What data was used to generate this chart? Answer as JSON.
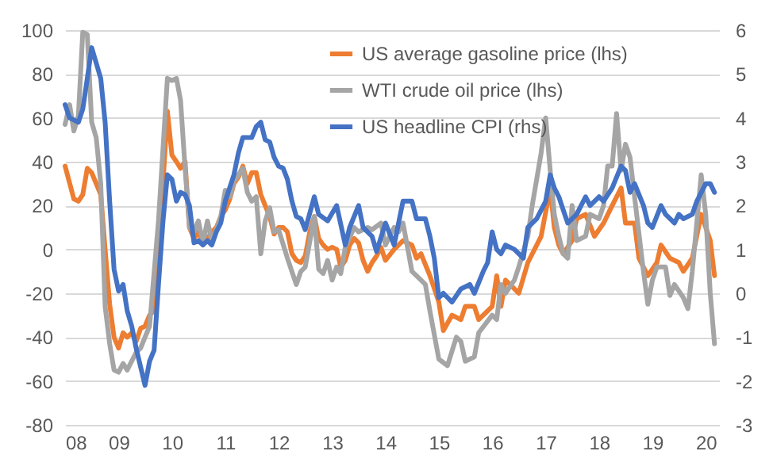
{
  "chart_data": {
    "type": "line",
    "xlim": [
      "2008-01",
      "2020-04"
    ],
    "xticks": [
      {
        "value": "2008",
        "label": "08"
      },
      {
        "value": "2009",
        "label": "09"
      },
      {
        "value": "2010",
        "label": "10"
      },
      {
        "value": "2011",
        "label": "11"
      },
      {
        "value": "2012",
        "label": "12"
      },
      {
        "value": "2013",
        "label": "13"
      },
      {
        "value": "2014",
        "label": "14"
      },
      {
        "value": "2015",
        "label": "15"
      },
      {
        "value": "2016",
        "label": "16"
      },
      {
        "value": "2017",
        "label": "17"
      },
      {
        "value": "2018",
        "label": "18"
      },
      {
        "value": "2019",
        "label": "19"
      },
      {
        "value": "2020",
        "label": "20"
      }
    ],
    "ylim": [
      -80,
      100
    ],
    "yticks": [
      -80,
      -60,
      -40,
      -20,
      0,
      20,
      40,
      60,
      80,
      100
    ],
    "y2lim": [
      -3,
      6
    ],
    "y2ticks": [
      -3,
      -2,
      -1,
      0,
      1,
      2,
      3,
      4,
      5,
      6
    ],
    "grid": "y",
    "legend": "top right",
    "series": [
      {
        "name": "US average gasoline price (lhs)",
        "color": "#ed7d31",
        "x": [
          "2008-01",
          "2008-03",
          "2008-04",
          "2008-05",
          "2008-06",
          "2008-07",
          "2008-08",
          "2008-09",
          "2008-10",
          "2008-11",
          "2008-12",
          "2009-01",
          "2009-02",
          "2009-03",
          "2009-04",
          "2009-05",
          "2009-06",
          "2009-07",
          "2009-08",
          "2009-09",
          "2009-10",
          "2009-11",
          "2009-12",
          "2010-01",
          "2010-02",
          "2010-03",
          "2010-04",
          "2010-05",
          "2010-06",
          "2010-07",
          "2010-08",
          "2010-09",
          "2010-10",
          "2010-11",
          "2010-12",
          "2011-01",
          "2011-02",
          "2011-03",
          "2011-04",
          "2011-05",
          "2011-06",
          "2011-07",
          "2011-08",
          "2011-09",
          "2011-10",
          "2011-11",
          "2011-12",
          "2012-01",
          "2012-02",
          "2012-03",
          "2012-04",
          "2012-05",
          "2012-06",
          "2012-07",
          "2012-08",
          "2012-09",
          "2012-10",
          "2012-11",
          "2012-12",
          "2013-01",
          "2013-02",
          "2013-03",
          "2013-04",
          "2013-05",
          "2013-06",
          "2013-07",
          "2013-08",
          "2013-09",
          "2013-10",
          "2013-11",
          "2013-12",
          "2014-01",
          "2014-03",
          "2014-05",
          "2014-07",
          "2014-08",
          "2014-09",
          "2014-11",
          "2015-01",
          "2015-02",
          "2015-04",
          "2015-06",
          "2015-07",
          "2015-09",
          "2015-10",
          "2016-01",
          "2016-02",
          "2016-03",
          "2016-04",
          "2016-06",
          "2016-07",
          "2016-09",
          "2016-12",
          "2017-02",
          "2017-03",
          "2017-04",
          "2017-05",
          "2017-07",
          "2017-08",
          "2017-10",
          "2017-12",
          "2018-02",
          "2018-04",
          "2018-06",
          "2018-07",
          "2018-09",
          "2018-10",
          "2018-12",
          "2019-02",
          "2019-03",
          "2019-05",
          "2019-07",
          "2019-08",
          "2019-10",
          "2019-12",
          "2020-02",
          "2020-03"
        ],
        "values": [
          38,
          23,
          22,
          25,
          37,
          35,
          30,
          25,
          0,
          -25,
          -40,
          -45,
          -38,
          -40,
          -38,
          -42,
          -36,
          -35,
          -30,
          -28,
          0,
          30,
          63,
          43,
          40,
          37,
          40,
          10,
          5,
          8,
          3,
          5,
          8,
          10,
          15,
          18,
          23,
          30,
          33,
          38,
          30,
          35,
          35,
          25,
          20,
          15,
          7,
          10,
          10,
          8,
          -2,
          -5,
          -6,
          -3,
          8,
          15,
          5,
          2,
          0,
          1,
          0,
          -8,
          -5,
          2,
          5,
          3,
          -5,
          -10,
          -6,
          -3,
          1,
          -5,
          0,
          4,
          2,
          -4,
          -2,
          -12,
          -24,
          -37,
          -30,
          -32,
          -26,
          -26,
          -32,
          -26,
          -12,
          -26,
          -14,
          -18,
          -20,
          -6,
          6,
          28,
          10,
          2,
          -2,
          4,
          14,
          16,
          6,
          12,
          20,
          28,
          12,
          12,
          -4,
          -12,
          -6,
          2,
          -4,
          -6,
          -10,
          -4,
          16,
          4,
          -12
        ]
      },
      {
        "name": "WTI crude oil price (lhs)",
        "color": "#a5a5a5",
        "x": [
          "2008-01",
          "2008-02",
          "2008-03",
          "2008-04",
          "2008-05",
          "2008-06",
          "2008-07",
          "2008-08",
          "2008-09",
          "2008-10",
          "2008-11",
          "2008-12",
          "2009-01",
          "2009-02",
          "2009-03",
          "2009-05",
          "2009-06",
          "2009-07",
          "2009-08",
          "2009-10",
          "2009-12",
          "2010-01",
          "2010-02",
          "2010-03",
          "2010-04",
          "2010-05",
          "2010-06",
          "2010-07",
          "2010-08",
          "2010-09",
          "2010-10",
          "2010-11",
          "2010-12",
          "2011-01",
          "2011-02",
          "2011-03",
          "2011-05",
          "2011-06",
          "2011-07",
          "2011-08",
          "2011-09",
          "2011-10",
          "2011-11",
          "2011-12",
          "2012-01",
          "2012-03",
          "2012-05",
          "2012-06",
          "2012-07",
          "2012-09",
          "2012-10",
          "2012-11",
          "2012-12",
          "2013-01",
          "2013-02",
          "2013-03",
          "2013-04",
          "2013-06",
          "2013-07",
          "2013-09",
          "2013-10",
          "2013-12",
          "2014-01",
          "2014-03",
          "2014-04",
          "2014-05",
          "2014-07",
          "2014-09",
          "2014-10",
          "2014-11",
          "2015-01",
          "2015-03",
          "2015-05",
          "2015-06",
          "2015-07",
          "2015-09",
          "2015-10",
          "2016-01",
          "2016-02",
          "2016-03",
          "2016-04",
          "2016-06",
          "2016-07",
          "2016-09",
          "2016-10",
          "2016-12",
          "2017-01",
          "2017-02",
          "2017-03",
          "2017-04",
          "2017-05",
          "2017-06",
          "2017-07",
          "2017-08",
          "2017-10",
          "2017-11",
          "2018-01",
          "2018-02",
          "2018-03",
          "2018-04",
          "2018-05",
          "2018-06",
          "2018-07",
          "2018-08",
          "2018-09",
          "2018-11",
          "2018-12",
          "2019-01",
          "2019-02",
          "2019-04",
          "2019-05",
          "2019-06",
          "2019-08",
          "2019-09",
          "2019-10",
          "2019-12",
          "2020-01",
          "2020-02",
          "2020-03"
        ],
        "values": [
          57,
          66,
          54,
          61,
          99,
          98,
          58,
          51,
          30,
          -26,
          -43,
          -55,
          -56,
          -52,
          -55,
          -47,
          -45,
          -40,
          -35,
          13,
          78,
          77,
          78,
          68,
          37,
          10,
          8,
          13,
          3,
          13,
          4,
          9,
          15,
          27,
          24,
          31,
          37,
          26,
          22,
          24,
          -2,
          13,
          19,
          8,
          9,
          -4,
          -16,
          -10,
          -8,
          15,
          -9,
          -11,
          -5,
          -14,
          -8,
          -11,
          1,
          10,
          8,
          10,
          9,
          12,
          2,
          10,
          8,
          12,
          -10,
          -14,
          -16,
          -28,
          -50,
          -53,
          -40,
          -42,
          -51,
          -49,
          -38,
          -30,
          -32,
          -16,
          -20,
          -14,
          -8,
          6,
          20,
          44,
          60,
          36,
          16,
          6,
          -2,
          -4,
          20,
          4,
          6,
          16,
          14,
          20,
          38,
          38,
          62,
          36,
          48,
          42,
          24,
          -10,
          -25,
          -14,
          -8,
          -8,
          -21,
          -16,
          -22,
          -27,
          -10,
          34,
          16,
          -20,
          -43
        ]
      },
      {
        "name": "US headline CPI (rhs)",
        "color": "#4472c4",
        "axis": "y2",
        "x": [
          "2008-01",
          "2008-02",
          "2008-04",
          "2008-05",
          "2008-06",
          "2008-07",
          "2008-08",
          "2008-09",
          "2008-10",
          "2008-11",
          "2008-12",
          "2009-01",
          "2009-02",
          "2009-03",
          "2009-04",
          "2009-05",
          "2009-07",
          "2009-08",
          "2009-09",
          "2009-10",
          "2009-11",
          "2009-12",
          "2010-01",
          "2010-02",
          "2010-03",
          "2010-04",
          "2010-05",
          "2010-06",
          "2010-07",
          "2010-08",
          "2010-09",
          "2010-10",
          "2010-11",
          "2010-12",
          "2011-01",
          "2011-03",
          "2011-04",
          "2011-05",
          "2011-07",
          "2011-08",
          "2011-09",
          "2011-10",
          "2011-11",
          "2011-12",
          "2012-01",
          "2012-02",
          "2012-03",
          "2012-04",
          "2012-05",
          "2012-06",
          "2012-07",
          "2012-09",
          "2012-10",
          "2012-12",
          "2013-02",
          "2013-04",
          "2013-05",
          "2013-07",
          "2013-08",
          "2013-10",
          "2013-11",
          "2014-01",
          "2014-03",
          "2014-05",
          "2014-07",
          "2014-08",
          "2014-10",
          "2014-11",
          "2014-12",
          "2015-01",
          "2015-02",
          "2015-04",
          "2015-06",
          "2015-08",
          "2015-09",
          "2015-11",
          "2015-12",
          "2016-01",
          "2016-02",
          "2016-03",
          "2016-04",
          "2016-06",
          "2016-07",
          "2016-08",
          "2016-09",
          "2016-11",
          "2017-01",
          "2017-02",
          "2017-03",
          "2017-04",
          "2017-05",
          "2017-06",
          "2017-08",
          "2017-10",
          "2017-11",
          "2018-01",
          "2018-02",
          "2018-04",
          "2018-06",
          "2018-07",
          "2018-08",
          "2018-09",
          "2018-11",
          "2018-12",
          "2019-01",
          "2019-03",
          "2019-04",
          "2019-06",
          "2019-07",
          "2019-08",
          "2019-10",
          "2019-11",
          "2020-01",
          "2020-02",
          "2020-03"
        ],
        "values": [
          4.3,
          4.0,
          3.9,
          4.2,
          4.9,
          5.6,
          5.25,
          4.9,
          3.9,
          2.1,
          0.55,
          0.05,
          0.2,
          -0.4,
          -0.75,
          -1.25,
          -2.1,
          -1.55,
          -1.3,
          0.2,
          1.65,
          2.7,
          2.6,
          2.1,
          2.3,
          2.25,
          2.0,
          1.15,
          1.2,
          1.1,
          1.2,
          1.1,
          1.4,
          1.6,
          2.1,
          2.7,
          3.2,
          3.55,
          3.55,
          3.8,
          3.9,
          3.5,
          3.45,
          3.1,
          2.9,
          2.85,
          2.6,
          2.1,
          1.75,
          1.7,
          1.45,
          2.2,
          1.8,
          1.65,
          2.0,
          1.1,
          1.5,
          2.0,
          1.5,
          1.3,
          0.95,
          1.6,
          1.1,
          2.1,
          2.1,
          1.7,
          1.7,
          1.3,
          0.8,
          -0.1,
          0.0,
          -0.2,
          0.1,
          0.2,
          0.0,
          0.5,
          0.7,
          1.4,
          1.0,
          0.9,
          1.1,
          1.0,
          0.9,
          0.8,
          1.5,
          1.7,
          2.1,
          2.7,
          2.4,
          2.2,
          1.9,
          1.6,
          1.8,
          2.2,
          2.0,
          2.2,
          2.1,
          2.4,
          2.9,
          2.8,
          2.3,
          2.5,
          2.0,
          1.6,
          1.5,
          2.0,
          1.8,
          1.6,
          1.8,
          1.7,
          1.8,
          2.1,
          2.5,
          2.5,
          2.3
        ]
      }
    ]
  }
}
